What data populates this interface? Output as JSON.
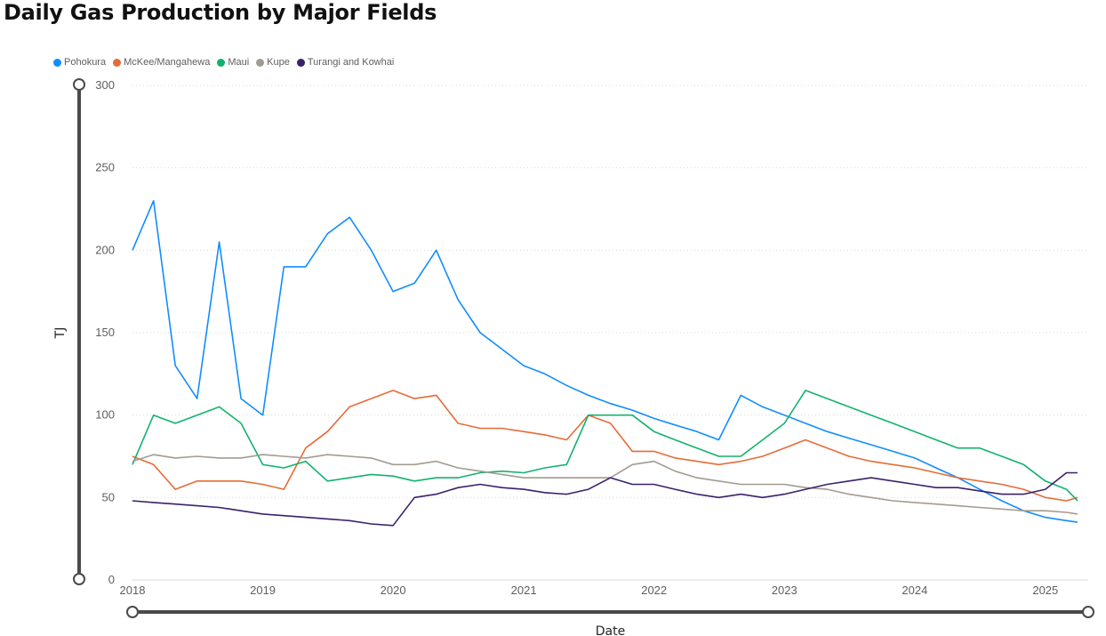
{
  "title": "Daily Gas Production by Major Fields",
  "chart_data": {
    "type": "line",
    "title": "Daily Gas Production by Major Fields",
    "xlabel": "Date",
    "ylabel": "TJ",
    "ylim": [
      0,
      300
    ],
    "xlim": [
      "2018-01-01",
      "2025-05-01"
    ],
    "x_ticks": [
      "2018",
      "2019",
      "2020",
      "2021",
      "2022",
      "2023",
      "2024",
      "2025"
    ],
    "y_ticks": [
      0,
      50,
      100,
      150,
      200,
      250,
      300
    ],
    "grid": "horizontal dotted",
    "legend": "top-left",
    "x": [
      "2018-01",
      "2018-03",
      "2018-05",
      "2018-07",
      "2018-09",
      "2018-11",
      "2019-01",
      "2019-03",
      "2019-05",
      "2019-07",
      "2019-09",
      "2019-11",
      "2020-01",
      "2020-03",
      "2020-05",
      "2020-07",
      "2020-09",
      "2020-11",
      "2021-01",
      "2021-03",
      "2021-05",
      "2021-07",
      "2021-09",
      "2021-11",
      "2022-01",
      "2022-03",
      "2022-05",
      "2022-07",
      "2022-09",
      "2022-11",
      "2023-01",
      "2023-03",
      "2023-05",
      "2023-07",
      "2023-09",
      "2023-11",
      "2024-01",
      "2024-03",
      "2024-05",
      "2024-07",
      "2024-09",
      "2024-11",
      "2025-01",
      "2025-03",
      "2025-04"
    ],
    "series": [
      {
        "name": "Pohokura",
        "color": "#118DFF",
        "values": [
          200,
          230,
          130,
          110,
          205,
          110,
          100,
          190,
          190,
          210,
          220,
          200,
          175,
          180,
          200,
          170,
          150,
          140,
          130,
          125,
          118,
          112,
          107,
          103,
          98,
          94,
          90,
          85,
          112,
          105,
          100,
          95,
          90,
          86,
          82,
          78,
          74,
          68,
          62,
          55,
          48,
          42,
          38,
          36,
          35
        ]
      },
      {
        "name": "McKee/Mangahewa",
        "color": "#E66C37",
        "values": [
          75,
          70,
          55,
          60,
          60,
          60,
          58,
          55,
          80,
          90,
          105,
          110,
          115,
          110,
          112,
          95,
          92,
          92,
          90,
          88,
          85,
          100,
          95,
          78,
          78,
          74,
          72,
          70,
          72,
          75,
          80,
          85,
          80,
          75,
          72,
          70,
          68,
          65,
          62,
          60,
          58,
          55,
          50,
          48,
          50
        ]
      },
      {
        "name": "Maui",
        "color": "#12B26E",
        "values": [
          70,
          100,
          95,
          100,
          105,
          95,
          70,
          68,
          72,
          60,
          62,
          64,
          63,
          60,
          62,
          62,
          65,
          66,
          65,
          68,
          70,
          100,
          100,
          100,
          90,
          85,
          80,
          75,
          75,
          85,
          95,
          115,
          110,
          105,
          100,
          95,
          90,
          85,
          80,
          80,
          75,
          70,
          60,
          55,
          48
        ]
      },
      {
        "name": "Kupe",
        "color": "#A29B91",
        "values": [
          72,
          76,
          74,
          75,
          74,
          74,
          76,
          75,
          74,
          76,
          75,
          74,
          70,
          70,
          72,
          68,
          66,
          64,
          62,
          62,
          62,
          62,
          62,
          70,
          72,
          66,
          62,
          60,
          58,
          58,
          58,
          56,
          55,
          52,
          50,
          48,
          47,
          46,
          45,
          44,
          43,
          42,
          42,
          41,
          40
        ]
      },
      {
        "name": "Turangi and Kowhai",
        "color": "#3A216B",
        "values": [
          48,
          47,
          46,
          45,
          44,
          42,
          40,
          39,
          38,
          37,
          36,
          34,
          33,
          50,
          52,
          56,
          58,
          56,
          55,
          53,
          52,
          55,
          62,
          58,
          58,
          55,
          52,
          50,
          52,
          50,
          52,
          55,
          58,
          60,
          62,
          60,
          58,
          56,
          56,
          54,
          52,
          52,
          55,
          65,
          65
        ]
      }
    ]
  }
}
